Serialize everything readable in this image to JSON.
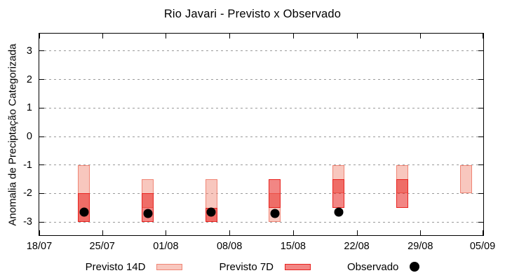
{
  "title": "Rio Javari - Previsto x Observado",
  "chart_data": {
    "type": "bar",
    "subtype": "floating-range-bars-with-points",
    "title": "Rio Javari - Previsto x Observado",
    "xlabel": "",
    "ylabel": "Anomalia de Preciptação Categorizada",
    "x_tick_labels": [
      "18/07",
      "25/07",
      "01/08",
      "08/08",
      "15/08",
      "22/08",
      "29/08",
      "05/09"
    ],
    "y_ticks": [
      3,
      2,
      1,
      0,
      -1,
      -2,
      -3
    ],
    "ylim": [
      -3.5,
      3.6
    ],
    "grid": "horizontal-dashed",
    "legend_position": "below-plot",
    "series": [
      {
        "name": "Previsto 14D",
        "kind": "range-bar",
        "fill": "rgba(240,130,110,0.45)",
        "border": "#f08575"
      },
      {
        "name": "Previsto 7D",
        "kind": "range-bar",
        "fill": "rgba(232,35,31,0.55)",
        "border": "#e8231f"
      },
      {
        "name": "Observado",
        "kind": "point",
        "color": "#000000"
      }
    ],
    "groups": [
      {
        "date": "23/07",
        "previsto_14d": [
          -1.0,
          -3.0
        ],
        "previsto_7d": [
          -2.0,
          -3.0
        ],
        "observado": -2.65
      },
      {
        "date": "30/07",
        "previsto_14d": [
          -1.5,
          -2.5
        ],
        "previsto_7d": [
          -2.0,
          -3.0
        ],
        "observado": -2.7
      },
      {
        "date": "06/08",
        "previsto_14d": [
          -1.5,
          -3.0
        ],
        "previsto_7d": [
          -2.5,
          -3.0
        ],
        "observado": -2.65
      },
      {
        "date": "13/08",
        "previsto_14d": [
          -2.0,
          -3.0
        ],
        "previsto_7d": [
          -1.5,
          -2.5
        ],
        "observado": -2.7
      },
      {
        "date": "20/08",
        "previsto_14d": [
          -1.0,
          -2.0
        ],
        "previsto_7d": [
          -1.5,
          -2.5
        ],
        "observado": -2.65
      },
      {
        "date": "27/08",
        "previsto_14d": [
          -1.0,
          -2.0
        ],
        "previsto_7d": [
          -1.5,
          -2.5
        ],
        "observado": null
      },
      {
        "date": "03/09",
        "previsto_14d": [
          -1.0,
          -2.0
        ],
        "previsto_7d": null,
        "observado": null
      }
    ]
  },
  "legend": {
    "items": [
      {
        "label": "Previsto 14D"
      },
      {
        "label": "Previsto 7D"
      },
      {
        "label": "Observado"
      }
    ]
  }
}
